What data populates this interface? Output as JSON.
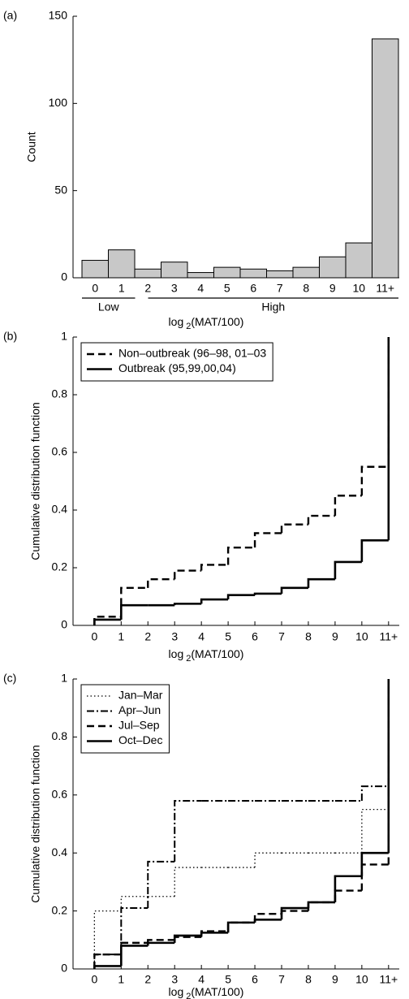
{
  "chart_data": [
    {
      "type": "bar",
      "panel_label": "(a)",
      "categories": [
        "0",
        "1",
        "2",
        "3",
        "4",
        "5",
        "6",
        "7",
        "8",
        "9",
        "10",
        "11+"
      ],
      "values": [
        10,
        16,
        5,
        9,
        3,
        6,
        5,
        4,
        6,
        12,
        20,
        137
      ],
      "color": "#c8c8c8",
      "ylim": [
        0,
        150
      ],
      "yticks": [
        0,
        50,
        100,
        150
      ],
      "ylabel": "Count",
      "xlabel": [
        "log",
        "2",
        "(MAT/100)"
      ],
      "groups": [
        {
          "label": "Low",
          "categories": [
            "0",
            "2"
          ]
        },
        {
          "label": "High",
          "categories": [
            "3",
            "11+"
          ]
        }
      ]
    },
    {
      "type": "step",
      "panel_label": "(b)",
      "x": [
        0,
        1,
        2,
        3,
        4,
        5,
        6,
        7,
        8,
        9,
        10,
        11
      ],
      "xlim": [
        -0.8,
        11.4
      ],
      "xticks": [
        0,
        1,
        2,
        3,
        4,
        5,
        6,
        7,
        8,
        9,
        10,
        {
          "value": 11,
          "label": "11+"
        }
      ],
      "ylim": [
        0,
        1
      ],
      "yticks": [
        0,
        0.2,
        0.4,
        0.6,
        0.8,
        1
      ],
      "ylabel": "Cumulative distribution function",
      "xlabel": [
        "log",
        "2",
        "(MAT/100)"
      ],
      "legend": "upper left",
      "series": [
        {
          "name": "Non–outbreak (96–98, 01–03",
          "color": "#000000",
          "linestyle": "dashed",
          "values": [
            0.03,
            0.13,
            0.16,
            0.19,
            0.21,
            0.27,
            0.32,
            0.35,
            0.38,
            0.45,
            0.55,
            1
          ]
        },
        {
          "name": "Outbreak (95,99,00,04)",
          "color": "#000000",
          "linestyle": "solid",
          "values": [
            0.02,
            0.07,
            0.07,
            0.075,
            0.09,
            0.105,
            0.11,
            0.13,
            0.16,
            0.22,
            0.295,
            1
          ]
        }
      ]
    },
    {
      "type": "step",
      "panel_label": "(c)",
      "x": [
        0,
        1,
        2,
        3,
        4,
        5,
        6,
        7,
        8,
        9,
        10,
        11
      ],
      "xlim": [
        -0.8,
        11.4
      ],
      "xticks": [
        0,
        1,
        2,
        3,
        4,
        5,
        6,
        7,
        8,
        9,
        10,
        {
          "value": 11,
          "label": "11+"
        }
      ],
      "ylim": [
        0,
        1
      ],
      "yticks": [
        0,
        0.2,
        0.4,
        0.6,
        0.8,
        1
      ],
      "ylabel": "Cumulative distribution function",
      "xlabel": [
        "log",
        "2",
        "(MAT/100)"
      ],
      "legend": "upper left",
      "series": [
        {
          "name": "Jan–Mar",
          "color": "#000000",
          "linestyle": "dotted",
          "values": [
            0.2,
            0.25,
            0.25,
            0.35,
            0.35,
            0.35,
            0.4,
            0.4,
            0.4,
            0.4,
            0.55,
            1
          ]
        },
        {
          "name": "Apr–Jun",
          "color": "#000000",
          "linestyle": "dashdot",
          "values": [
            0.05,
            0.21,
            0.37,
            0.58,
            0.58,
            0.58,
            0.58,
            0.58,
            0.58,
            0.58,
            0.63,
            1
          ]
        },
        {
          "name": "Jul–Sep",
          "color": "#000000",
          "linestyle": "dashed",
          "values": [
            0.05,
            0.09,
            0.1,
            0.11,
            0.13,
            0.16,
            0.19,
            0.2,
            0.23,
            0.27,
            0.36,
            1
          ]
        },
        {
          "name": "Oct–Dec",
          "color": "#000000",
          "linestyle": "solid",
          "values": [
            0.01,
            0.08,
            0.09,
            0.115,
            0.125,
            0.16,
            0.17,
            0.21,
            0.23,
            0.32,
            0.4,
            1
          ]
        }
      ]
    }
  ]
}
